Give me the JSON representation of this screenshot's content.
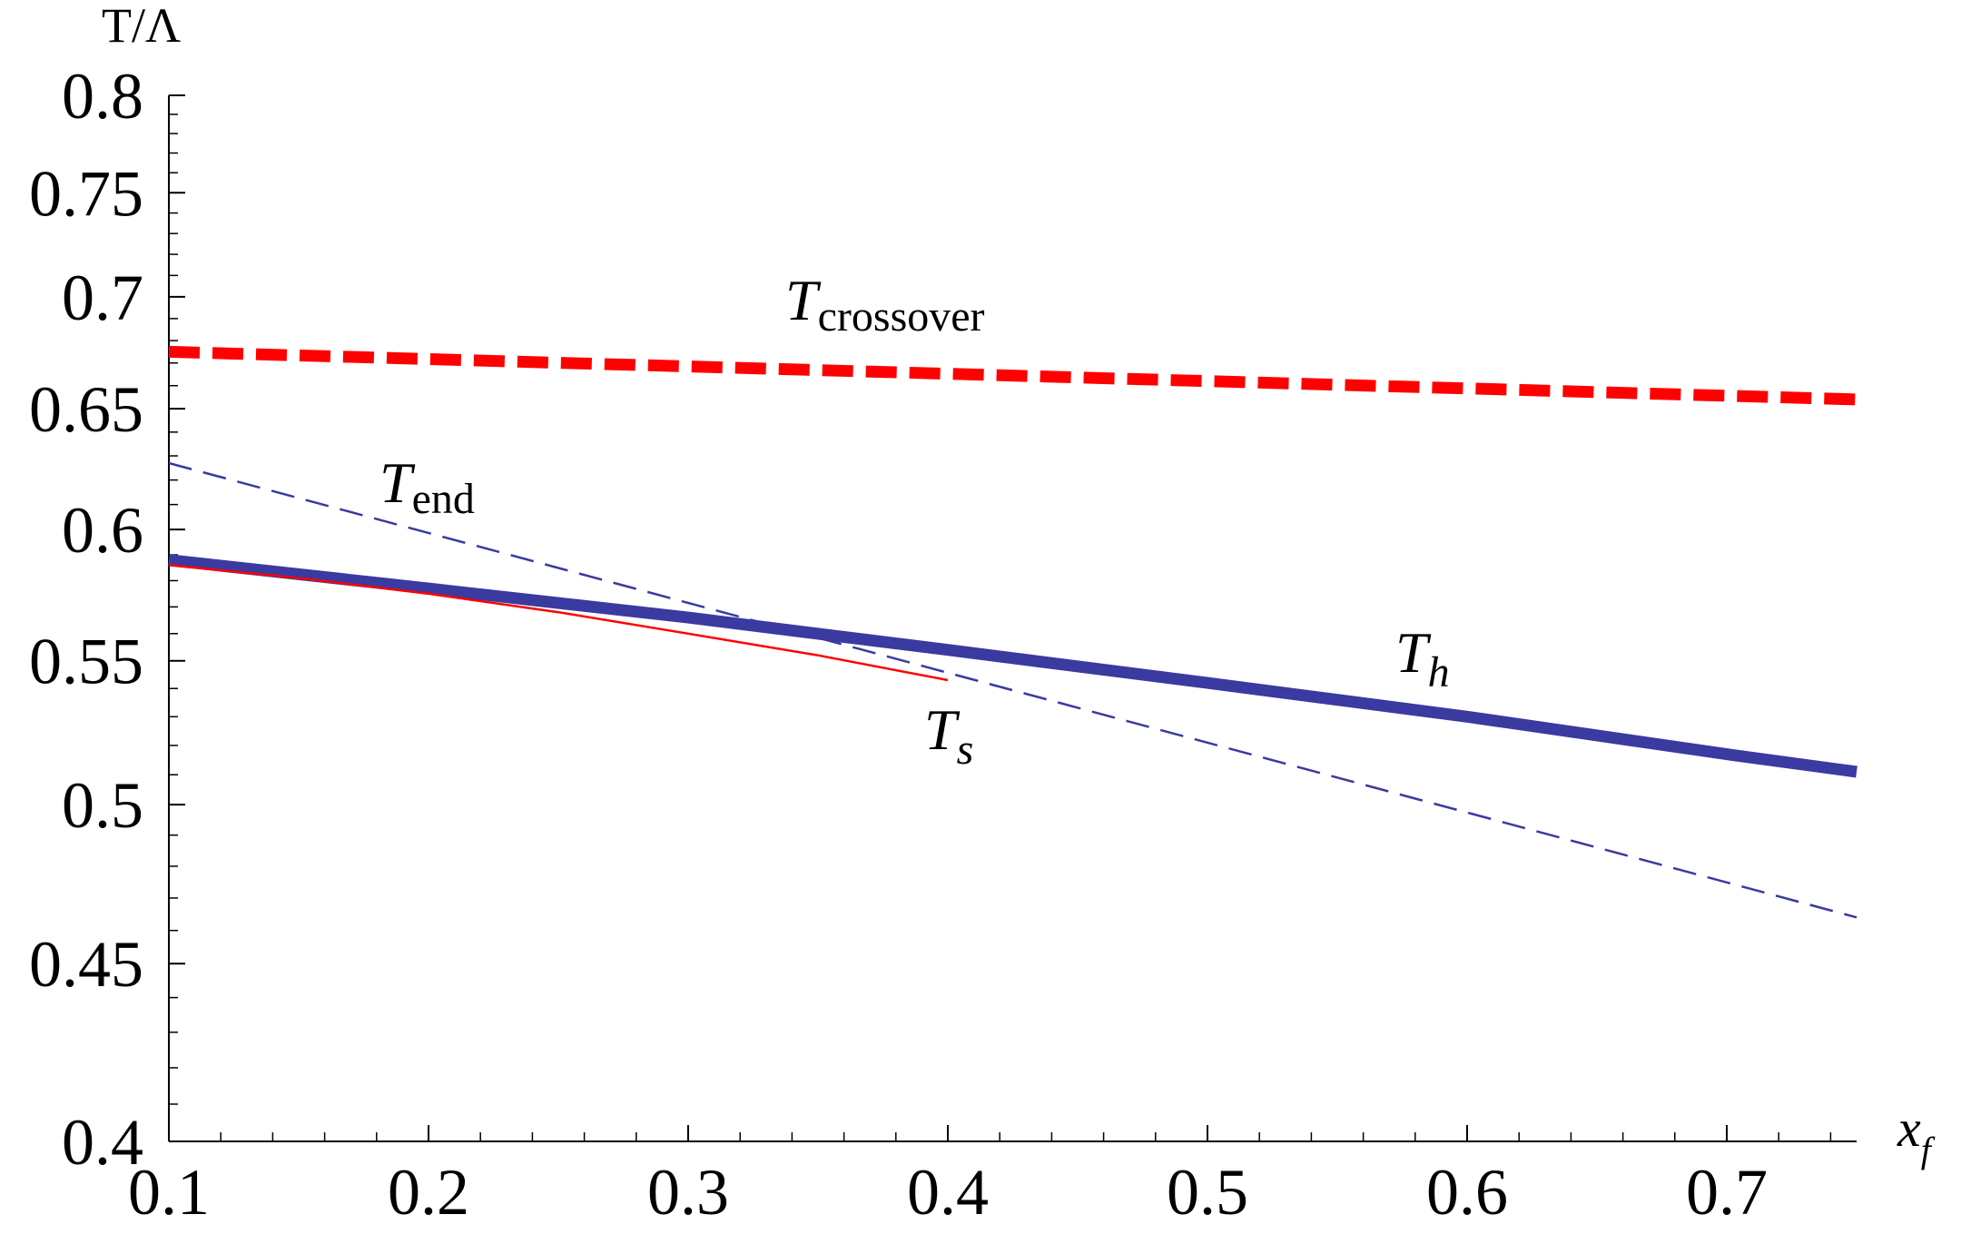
{
  "chart_data": {
    "type": "line",
    "xlabel": "x",
    "xlabel_sub": "f",
    "ylabel": "T/Λ",
    "xlim": [
      0.1,
      0.75
    ],
    "ylim": [
      0.4,
      0.8
    ],
    "y_scale": "log",
    "grid": false,
    "x_ticks": [
      "0.1",
      "0.2",
      "0.3",
      "0.4",
      "0.5",
      "0.6",
      "0.7"
    ],
    "y_ticks": [
      "0.4",
      "0.45",
      "0.5",
      "0.55",
      "0.6",
      "0.65",
      "0.7",
      "0.75",
      "0.8"
    ],
    "series": [
      {
        "label_main": "T",
        "label_sub": "crossover",
        "color": "#ff0000",
        "style": "thick-dashed",
        "x": [
          0.1,
          0.75
        ],
        "y": [
          0.675,
          0.654
        ]
      },
      {
        "label_main": "T",
        "label_sub": "end",
        "color": "#3a3aa0",
        "style": "thin-dashed",
        "x": [
          0.1,
          0.75
        ],
        "y": [
          0.627,
          0.464
        ]
      },
      {
        "label_main": "T",
        "label_sub": "h",
        "color": "#3a3aa0",
        "style": "thick-solid",
        "x": [
          0.1,
          0.2,
          0.3,
          0.4,
          0.5,
          0.6,
          0.7,
          0.75
        ],
        "y": [
          0.588,
          0.577,
          0.566,
          0.554,
          0.542,
          0.53,
          0.517,
          0.511
        ]
      },
      {
        "label_main": "T",
        "label_sub": "s",
        "color": "#ff0000",
        "style": "thin-solid",
        "x": [
          0.1,
          0.15,
          0.2,
          0.25,
          0.3,
          0.35,
          0.4
        ],
        "y": [
          0.586,
          0.581,
          0.575,
          0.568,
          0.56,
          0.552,
          0.543
        ]
      }
    ]
  }
}
